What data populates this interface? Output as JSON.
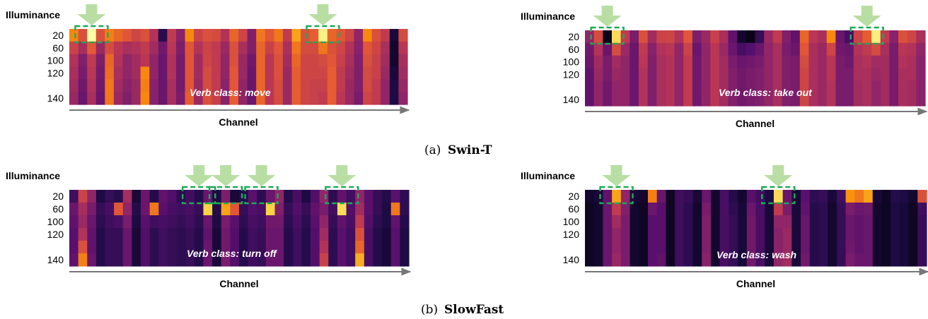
{
  "captions": [
    {
      "prefix": "(a)",
      "model": "Swin-T"
    },
    {
      "prefix": "(b)",
      "model": "SlowFast"
    }
  ],
  "colors": {
    "colormap": "inferno",
    "highlight_box": "#1eaa55",
    "highlight_arrow": "#b9dea4",
    "axis": "#777777"
  },
  "chart_data": [
    {
      "type": "heatmap",
      "panel": "a",
      "model": "Swin-T",
      "ylabel": "Illuminance",
      "xlabel": "Channel",
      "yticks": [
        "20",
        "60",
        "100",
        "120",
        "140"
      ],
      "annotation": "Verb class: move",
      "columns": 38,
      "highlighted_columns": [
        2,
        28
      ],
      "values": [
        [
          0.74,
          0.6,
          1.0,
          0.6,
          0.72,
          0.66,
          0.62,
          0.56,
          0.6,
          0.48,
          0.15,
          0.52,
          0.38,
          0.74,
          0.55,
          0.6,
          0.58,
          0.48,
          0.66,
          0.56,
          0.36,
          0.7,
          0.62,
          0.7,
          0.52,
          0.8,
          0.6,
          0.64,
          0.97,
          0.66,
          0.62,
          0.56,
          0.4,
          0.74,
          0.6,
          0.52,
          0.1,
          0.58
        ],
        [
          0.55,
          0.45,
          0.63,
          0.42,
          0.58,
          0.5,
          0.46,
          0.48,
          0.52,
          0.44,
          0.32,
          0.5,
          0.35,
          0.62,
          0.48,
          0.55,
          0.52,
          0.42,
          0.6,
          0.46,
          0.36,
          0.66,
          0.54,
          0.62,
          0.46,
          0.7,
          0.58,
          0.58,
          0.7,
          0.6,
          0.56,
          0.48,
          0.38,
          0.62,
          0.56,
          0.46,
          0.08,
          0.5
        ],
        [
          0.48,
          0.36,
          0.52,
          0.35,
          0.66,
          0.48,
          0.4,
          0.44,
          0.5,
          0.4,
          0.3,
          0.48,
          0.33,
          0.62,
          0.44,
          0.56,
          0.52,
          0.4,
          0.6,
          0.42,
          0.32,
          0.66,
          0.5,
          0.6,
          0.44,
          0.66,
          0.56,
          0.56,
          0.58,
          0.62,
          0.54,
          0.46,
          0.36,
          0.6,
          0.54,
          0.44,
          0.08,
          0.46
        ],
        [
          0.46,
          0.34,
          0.5,
          0.33,
          0.68,
          0.46,
          0.4,
          0.44,
          0.74,
          0.4,
          0.3,
          0.48,
          0.33,
          0.62,
          0.44,
          0.58,
          0.52,
          0.4,
          0.62,
          0.42,
          0.3,
          0.66,
          0.5,
          0.6,
          0.42,
          0.64,
          0.56,
          0.56,
          0.56,
          0.64,
          0.52,
          0.44,
          0.36,
          0.58,
          0.54,
          0.42,
          0.1,
          0.44
        ],
        [
          0.44,
          0.32,
          0.48,
          0.32,
          0.7,
          0.44,
          0.38,
          0.42,
          0.72,
          0.38,
          0.3,
          0.46,
          0.33,
          0.62,
          0.42,
          0.58,
          0.52,
          0.38,
          0.62,
          0.4,
          0.3,
          0.66,
          0.5,
          0.58,
          0.42,
          0.64,
          0.56,
          0.54,
          0.54,
          0.64,
          0.52,
          0.42,
          0.36,
          0.58,
          0.52,
          0.4,
          0.12,
          0.42
        ],
        [
          0.42,
          0.3,
          0.46,
          0.3,
          0.7,
          0.42,
          0.36,
          0.42,
          0.74,
          0.38,
          0.3,
          0.46,
          0.34,
          0.64,
          0.42,
          0.6,
          0.54,
          0.38,
          0.64,
          0.4,
          0.3,
          0.66,
          0.5,
          0.58,
          0.42,
          0.64,
          0.56,
          0.54,
          0.52,
          0.64,
          0.5,
          0.42,
          0.34,
          0.56,
          0.52,
          0.4,
          0.12,
          0.4
        ]
      ]
    },
    {
      "type": "heatmap",
      "panel": "a",
      "model": "Swin-T",
      "ylabel": "Illuminance",
      "xlabel": "Channel",
      "yticks": [
        "20",
        "60",
        "100",
        "120",
        "140"
      ],
      "annotation": "Verb class: take out",
      "columns": 38,
      "highlighted_columns": [
        2,
        31
      ],
      "values": [
        [
          0.4,
          0.58,
          0.05,
          0.92,
          0.52,
          0.34,
          0.6,
          0.44,
          0.55,
          0.56,
          0.48,
          0.62,
          0.35,
          0.42,
          0.54,
          0.46,
          0.28,
          0.08,
          0.04,
          0.18,
          0.42,
          0.52,
          0.36,
          0.28,
          0.66,
          0.5,
          0.46,
          0.74,
          0.3,
          0.22,
          0.55,
          0.64,
          0.96,
          0.52,
          0.38,
          0.6,
          0.56,
          0.46
        ],
        [
          0.32,
          0.48,
          0.3,
          0.58,
          0.42,
          0.3,
          0.52,
          0.38,
          0.48,
          0.5,
          0.4,
          0.55,
          0.3,
          0.4,
          0.5,
          0.42,
          0.3,
          0.22,
          0.25,
          0.3,
          0.4,
          0.46,
          0.34,
          0.3,
          0.62,
          0.46,
          0.42,
          0.56,
          0.32,
          0.3,
          0.48,
          0.52,
          0.58,
          0.46,
          0.34,
          0.5,
          0.48,
          0.4
        ],
        [
          0.3,
          0.44,
          0.34,
          0.44,
          0.4,
          0.3,
          0.5,
          0.36,
          0.46,
          0.48,
          0.4,
          0.52,
          0.32,
          0.4,
          0.5,
          0.44,
          0.34,
          0.3,
          0.32,
          0.34,
          0.4,
          0.46,
          0.36,
          0.34,
          0.58,
          0.46,
          0.42,
          0.5,
          0.34,
          0.32,
          0.46,
          0.48,
          0.44,
          0.44,
          0.34,
          0.48,
          0.46,
          0.38
        ],
        [
          0.28,
          0.42,
          0.34,
          0.42,
          0.4,
          0.3,
          0.48,
          0.36,
          0.46,
          0.48,
          0.4,
          0.52,
          0.32,
          0.4,
          0.5,
          0.44,
          0.36,
          0.32,
          0.34,
          0.36,
          0.4,
          0.46,
          0.36,
          0.34,
          0.56,
          0.46,
          0.42,
          0.5,
          0.34,
          0.34,
          0.46,
          0.46,
          0.42,
          0.44,
          0.34,
          0.46,
          0.46,
          0.38
        ],
        [
          0.28,
          0.4,
          0.32,
          0.4,
          0.4,
          0.3,
          0.48,
          0.36,
          0.46,
          0.48,
          0.4,
          0.52,
          0.32,
          0.4,
          0.5,
          0.44,
          0.36,
          0.32,
          0.34,
          0.36,
          0.4,
          0.46,
          0.36,
          0.34,
          0.56,
          0.46,
          0.42,
          0.48,
          0.34,
          0.34,
          0.44,
          0.46,
          0.4,
          0.44,
          0.34,
          0.46,
          0.44,
          0.38
        ],
        [
          0.28,
          0.4,
          0.32,
          0.4,
          0.4,
          0.3,
          0.48,
          0.36,
          0.46,
          0.48,
          0.4,
          0.52,
          0.32,
          0.4,
          0.5,
          0.44,
          0.36,
          0.32,
          0.34,
          0.36,
          0.4,
          0.46,
          0.36,
          0.34,
          0.56,
          0.46,
          0.42,
          0.48,
          0.34,
          0.34,
          0.44,
          0.46,
          0.4,
          0.44,
          0.34,
          0.46,
          0.44,
          0.38
        ]
      ]
    },
    {
      "type": "heatmap",
      "panel": "b",
      "model": "SlowFast",
      "ylabel": "Illuminance",
      "xlabel": "Channel",
      "yticks": [
        "20",
        "60",
        "100",
        "120",
        "140"
      ],
      "annotation": "Verb class: turn off",
      "columns": 38,
      "highlighted_columns": [
        14,
        17,
        21,
        30
      ],
      "values": [
        [
          0.2,
          0.55,
          0.4,
          0.12,
          0.18,
          0.15,
          0.45,
          0.1,
          0.3,
          0.14,
          0.28,
          0.24,
          0.16,
          0.2,
          0.14,
          0.3,
          0.12,
          0.35,
          0.1,
          0.14,
          0.26,
          0.16,
          0.3,
          0.4,
          0.14,
          0.22,
          0.12,
          0.24,
          0.4,
          0.16,
          0.28,
          0.2,
          0.4,
          0.26,
          0.18,
          0.14,
          0.26,
          0.16
        ],
        [
          0.3,
          0.45,
          0.34,
          0.18,
          0.22,
          0.62,
          0.4,
          0.14,
          0.3,
          0.7,
          0.26,
          0.22,
          0.2,
          0.22,
          0.18,
          0.9,
          0.14,
          0.8,
          0.62,
          0.18,
          0.24,
          0.22,
          0.9,
          0.36,
          0.18,
          0.24,
          0.18,
          0.28,
          0.34,
          0.2,
          0.92,
          0.24,
          0.44,
          0.26,
          0.18,
          0.12,
          0.7,
          0.16
        ],
        [
          0.28,
          0.42,
          0.3,
          0.16,
          0.2,
          0.22,
          0.34,
          0.12,
          0.26,
          0.2,
          0.22,
          0.2,
          0.18,
          0.2,
          0.16,
          0.3,
          0.12,
          0.34,
          0.26,
          0.16,
          0.22,
          0.2,
          0.32,
          0.32,
          0.16,
          0.22,
          0.16,
          0.26,
          0.4,
          0.18,
          0.28,
          0.22,
          0.52,
          0.24,
          0.16,
          0.12,
          0.28,
          0.14
        ],
        [
          0.26,
          0.48,
          0.28,
          0.14,
          0.18,
          0.18,
          0.3,
          0.1,
          0.24,
          0.16,
          0.2,
          0.18,
          0.16,
          0.18,
          0.14,
          0.28,
          0.1,
          0.32,
          0.24,
          0.14,
          0.2,
          0.18,
          0.3,
          0.3,
          0.14,
          0.2,
          0.14,
          0.24,
          0.44,
          0.16,
          0.26,
          0.2,
          0.6,
          0.22,
          0.14,
          0.1,
          0.26,
          0.12
        ],
        [
          0.26,
          0.6,
          0.28,
          0.14,
          0.18,
          0.18,
          0.3,
          0.1,
          0.24,
          0.16,
          0.2,
          0.18,
          0.16,
          0.18,
          0.14,
          0.3,
          0.1,
          0.32,
          0.24,
          0.14,
          0.2,
          0.18,
          0.3,
          0.3,
          0.14,
          0.2,
          0.14,
          0.24,
          0.48,
          0.16,
          0.26,
          0.2,
          0.66,
          0.22,
          0.14,
          0.1,
          0.26,
          0.12
        ],
        [
          0.28,
          0.72,
          0.3,
          0.14,
          0.18,
          0.18,
          0.3,
          0.1,
          0.24,
          0.16,
          0.2,
          0.18,
          0.16,
          0.18,
          0.14,
          0.3,
          0.1,
          0.34,
          0.24,
          0.14,
          0.2,
          0.18,
          0.3,
          0.3,
          0.14,
          0.2,
          0.14,
          0.24,
          0.54,
          0.16,
          0.26,
          0.2,
          0.82,
          0.22,
          0.14,
          0.1,
          0.26,
          0.12
        ]
      ]
    },
    {
      "type": "heatmap",
      "panel": "b",
      "model": "SlowFast",
      "ylabel": "Illuminance",
      "xlabel": "Channel",
      "yticks": [
        "20",
        "60",
        "100",
        "120",
        "140"
      ],
      "annotation": "Verb class: wash",
      "columns": 38,
      "highlighted_columns": [
        3,
        21
      ],
      "values": [
        [
          0.08,
          0.1,
          0.28,
          0.8,
          0.4,
          0.1,
          0.08,
          0.72,
          0.3,
          0.06,
          0.2,
          0.18,
          0.1,
          0.3,
          0.08,
          0.22,
          0.14,
          0.08,
          0.26,
          0.2,
          0.12,
          0.92,
          0.3,
          0.1,
          0.26,
          0.16,
          0.18,
          0.1,
          0.2,
          0.76,
          0.7,
          0.8,
          0.1,
          0.06,
          0.14,
          0.12,
          0.08,
          0.6
        ],
        [
          0.06,
          0.08,
          0.3,
          0.52,
          0.36,
          0.08,
          0.06,
          0.3,
          0.26,
          0.06,
          0.2,
          0.16,
          0.08,
          0.34,
          0.08,
          0.22,
          0.16,
          0.1,
          0.3,
          0.22,
          0.1,
          0.52,
          0.34,
          0.1,
          0.28,
          0.14,
          0.16,
          0.08,
          0.18,
          0.34,
          0.3,
          0.32,
          0.08,
          0.06,
          0.12,
          0.1,
          0.06,
          0.2
        ],
        [
          0.06,
          0.08,
          0.3,
          0.44,
          0.34,
          0.08,
          0.06,
          0.26,
          0.26,
          0.06,
          0.2,
          0.16,
          0.08,
          0.36,
          0.08,
          0.22,
          0.18,
          0.1,
          0.32,
          0.22,
          0.1,
          0.4,
          0.4,
          0.1,
          0.3,
          0.14,
          0.16,
          0.08,
          0.18,
          0.3,
          0.28,
          0.3,
          0.08,
          0.06,
          0.12,
          0.1,
          0.06,
          0.18
        ],
        [
          0.06,
          0.08,
          0.3,
          0.4,
          0.34,
          0.08,
          0.06,
          0.26,
          0.26,
          0.06,
          0.2,
          0.16,
          0.08,
          0.36,
          0.08,
          0.22,
          0.18,
          0.1,
          0.32,
          0.22,
          0.1,
          0.38,
          0.42,
          0.1,
          0.3,
          0.14,
          0.16,
          0.08,
          0.18,
          0.3,
          0.28,
          0.3,
          0.08,
          0.06,
          0.12,
          0.1,
          0.06,
          0.18
        ],
        [
          0.06,
          0.08,
          0.3,
          0.4,
          0.34,
          0.08,
          0.06,
          0.26,
          0.26,
          0.06,
          0.2,
          0.16,
          0.08,
          0.36,
          0.08,
          0.22,
          0.18,
          0.1,
          0.32,
          0.22,
          0.1,
          0.38,
          0.42,
          0.1,
          0.3,
          0.14,
          0.16,
          0.08,
          0.18,
          0.32,
          0.28,
          0.3,
          0.08,
          0.06,
          0.12,
          0.1,
          0.06,
          0.18
        ],
        [
          0.06,
          0.08,
          0.3,
          0.42,
          0.34,
          0.08,
          0.06,
          0.26,
          0.28,
          0.06,
          0.2,
          0.16,
          0.08,
          0.38,
          0.08,
          0.22,
          0.18,
          0.1,
          0.32,
          0.22,
          0.1,
          0.4,
          0.44,
          0.1,
          0.32,
          0.14,
          0.16,
          0.08,
          0.18,
          0.34,
          0.3,
          0.3,
          0.08,
          0.06,
          0.12,
          0.1,
          0.06,
          0.18
        ]
      ]
    }
  ]
}
